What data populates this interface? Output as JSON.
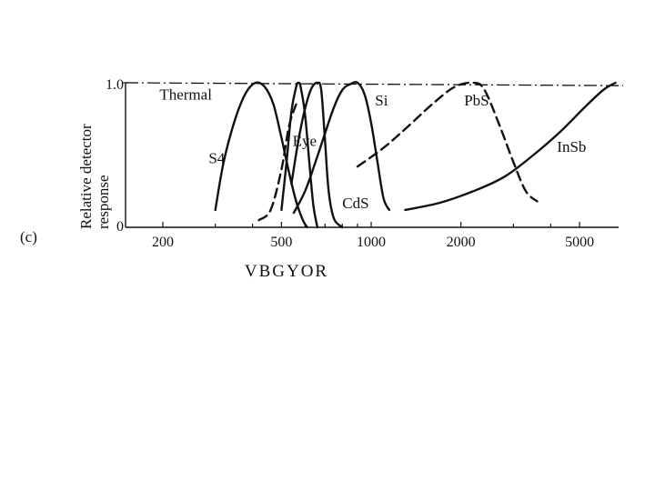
{
  "chart_data": {
    "type": "line",
    "panel_label": "(c)",
    "title": "",
    "ylabel_lines": [
      "Relative detector",
      "response"
    ],
    "xlabel": "VBGYOR",
    "x_scale": "log",
    "xlim": [
      150,
      7000
    ],
    "ylim": [
      0,
      1.0
    ],
    "x_ticks": [
      200,
      500,
      1000,
      2000,
      5000
    ],
    "x_tick_labels": [
      "200",
      "500",
      "1000",
      "2000",
      "5000"
    ],
    "y_tick_labels": [
      "0",
      "1.0"
    ],
    "series": [
      {
        "name": "Thermal",
        "style": "dash-dot",
        "x": [
          150,
          7000
        ],
        "y": [
          1.0,
          0.98
        ]
      },
      {
        "name": "S4",
        "style": "solid",
        "x": [
          300,
          320,
          350,
          380,
          410,
          440,
          470,
          500,
          530,
          560,
          590,
          610
        ],
        "y": [
          0.12,
          0.45,
          0.75,
          0.93,
          1.0,
          0.97,
          0.85,
          0.62,
          0.38,
          0.18,
          0.05,
          0.0
        ]
      },
      {
        "name": "Eye",
        "style": "solid",
        "x": [
          500,
          520,
          540,
          560,
          570,
          580,
          600,
          620,
          640,
          660
        ],
        "y": [
          0.12,
          0.45,
          0.8,
          0.97,
          1.0,
          0.97,
          0.78,
          0.45,
          0.15,
          0.0
        ]
      },
      {
        "name": "Eye (dashed branch)",
        "style": "dashed",
        "x": [
          420,
          460,
          500,
          530,
          560
        ],
        "y": [
          0.05,
          0.12,
          0.4,
          0.7,
          0.85
        ]
      },
      {
        "name": "CdS",
        "style": "solid",
        "x": [
          540,
          570,
          600,
          630,
          660,
          680,
          700,
          720,
          750,
          800
        ],
        "y": [
          0.3,
          0.6,
          0.82,
          0.96,
          1.0,
          0.95,
          0.6,
          0.25,
          0.06,
          0.0
        ]
      },
      {
        "name": "Si",
        "style": "solid",
        "x": [
          550,
          600,
          650,
          700,
          750,
          800,
          850,
          900,
          950,
          1000,
          1050,
          1100,
          1150
        ],
        "y": [
          0.1,
          0.25,
          0.45,
          0.65,
          0.83,
          0.95,
          0.99,
          1.0,
          0.92,
          0.72,
          0.45,
          0.2,
          0.12
        ]
      },
      {
        "name": "PbS",
        "style": "dashed",
        "x": [
          900,
          1100,
          1300,
          1600,
          1900,
          2200,
          2400,
          2700,
          3000,
          3300,
          3600
        ],
        "y": [
          0.42,
          0.55,
          0.68,
          0.85,
          0.97,
          1.0,
          0.95,
          0.7,
          0.45,
          0.25,
          0.18
        ]
      },
      {
        "name": "InSb",
        "style": "solid",
        "x": [
          1300,
          1700,
          2200,
          2800,
          3500,
          4300,
          5200,
          6000,
          6600
        ],
        "y": [
          0.12,
          0.17,
          0.25,
          0.35,
          0.5,
          0.66,
          0.83,
          0.95,
          1.0
        ]
      }
    ],
    "curve_labels": [
      {
        "series": "Thermal",
        "text": "Thermal",
        "x": 195,
        "y": 0.92
      },
      {
        "series": "S4",
        "text": "S4",
        "x": 285,
        "y": 0.48
      },
      {
        "series": "Eye",
        "text": "Eye",
        "x": 545,
        "y": 0.6
      },
      {
        "series": "CdS",
        "text": "CdS",
        "x": 800,
        "y": 0.17
      },
      {
        "series": "Si",
        "text": "Si",
        "x": 1030,
        "y": 0.88
      },
      {
        "series": "PbS",
        "text": "PbS",
        "x": 2050,
        "y": 0.88
      },
      {
        "series": "InSb",
        "text": "InSb",
        "x": 4200,
        "y": 0.56
      }
    ]
  }
}
